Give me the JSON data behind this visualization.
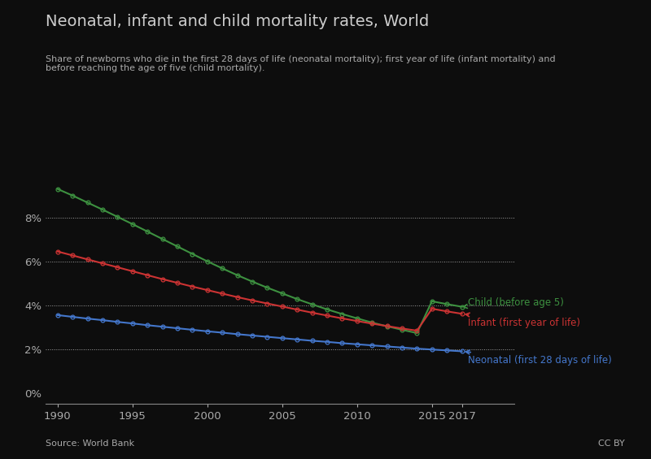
{
  "title": "Neonatal, infant and child mortality rates, World",
  "subtitle": "Share of newborns who die in the first 28 days of life (neonatal mortality); first year of life (infant mortality) and\nbefore reaching the age of five (child mortality).",
  "source": "Source: World Bank",
  "cc": "CC BY",
  "background_color": "#0d0d0d",
  "text_color": "#aaaaaa",
  "title_color": "#cccccc",
  "years": [
    1990,
    1991,
    1992,
    1993,
    1994,
    1995,
    1996,
    1997,
    1998,
    1999,
    2000,
    2001,
    2002,
    2003,
    2004,
    2005,
    2006,
    2007,
    2008,
    2009,
    2010,
    2011,
    2012,
    2013,
    2014,
    2015,
    2016,
    2017
  ],
  "child": [
    0.093,
    0.09,
    0.0868,
    0.0836,
    0.0803,
    0.077,
    0.0736,
    0.0702,
    0.0668,
    0.0634,
    0.06,
    0.0568,
    0.0537,
    0.0508,
    0.048,
    0.0454,
    0.0428,
    0.0404,
    0.0381,
    0.036,
    0.034,
    0.0321,
    0.0304,
    0.0288,
    0.0273,
    0.0418,
    0.0405,
    0.0393
  ],
  "infant": [
    0.0645,
    0.0627,
    0.0609,
    0.0591,
    0.0573,
    0.0555,
    0.0537,
    0.0519,
    0.0502,
    0.0485,
    0.0469,
    0.0453,
    0.0437,
    0.0422,
    0.0408,
    0.0394,
    0.038,
    0.0366,
    0.0353,
    0.034,
    0.0328,
    0.0316,
    0.0305,
    0.0294,
    0.0284,
    0.0384,
    0.0372,
    0.0361
  ],
  "neonatal": [
    0.0355,
    0.0347,
    0.0339,
    0.0332,
    0.0324,
    0.0317,
    0.0309,
    0.0302,
    0.0295,
    0.0288,
    0.0281,
    0.0275,
    0.0268,
    0.0262,
    0.0256,
    0.025,
    0.0244,
    0.0238,
    0.0233,
    0.0227,
    0.0222,
    0.0217,
    0.0212,
    0.0207,
    0.0202,
    0.0198,
    0.0194,
    0.019
  ],
  "child_color": "#3d9140",
  "infant_color": "#cc3333",
  "neonatal_color": "#4477cc",
  "yticks": [
    0.0,
    0.02,
    0.04,
    0.06,
    0.08
  ],
  "ytick_labels": [
    "0%",
    "2%",
    "4%",
    "6%",
    "8%"
  ],
  "xticks": [
    1990,
    1995,
    2000,
    2005,
    2010,
    2015,
    2017
  ],
  "xlim": [
    1989.2,
    2020.5
  ],
  "ylim": [
    -0.005,
    0.108
  ]
}
